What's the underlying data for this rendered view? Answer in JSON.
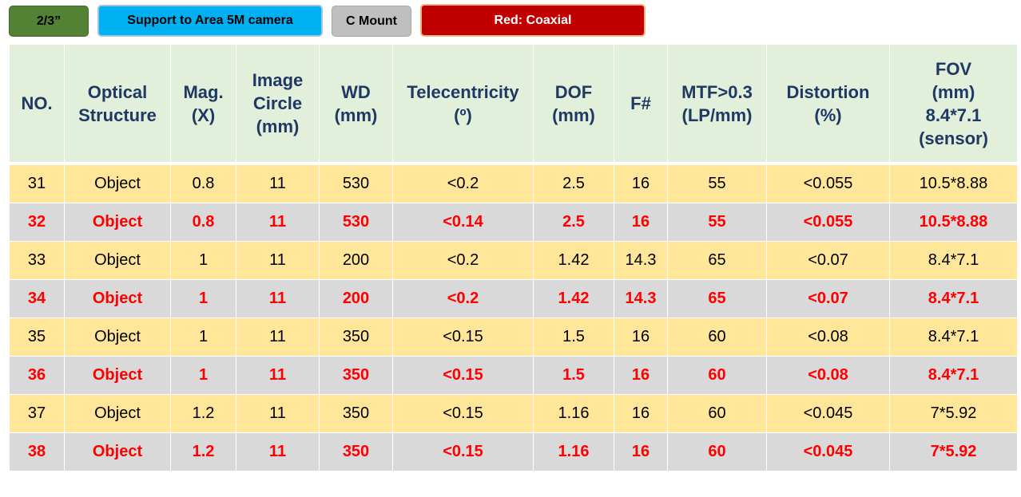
{
  "tags": {
    "sensor_size": "2/3”",
    "support": "Support to Area 5M camera",
    "mount": "C Mount",
    "legend": "Red: Coaxial"
  },
  "colors": {
    "sensor_tag": "#548235",
    "support_tag": "#00b0f0",
    "mount_tag": "#bfbfbf",
    "coaxial_tag": "#c00000",
    "header_bg": "#e2efda",
    "header_text": "#1f3864",
    "standard_row_bg": "#ffe699",
    "coaxial_row_bg": "#d9d9d9",
    "coaxial_text": "#ff0000"
  },
  "table": {
    "headers": [
      [
        "NO."
      ],
      [
        "Optical",
        "Structure"
      ],
      [
        "Mag.",
        "(X)"
      ],
      [
        "Image",
        "Circle",
        "(mm)"
      ],
      [
        "WD",
        "(mm)"
      ],
      [
        "Telecentricity",
        "(º)"
      ],
      [
        "DOF",
        "(mm)"
      ],
      [
        "F#"
      ],
      [
        "MTF>0.3",
        "(LP/mm)"
      ],
      [
        "Distortion",
        "(%)"
      ],
      [
        "FOV",
        "(mm)",
        "8.4*7.1",
        "(sensor)"
      ]
    ],
    "rows": [
      {
        "coaxial": false,
        "cells": [
          "31",
          "Object",
          "0.8",
          "11",
          "530",
          "<0.2",
          "2.5",
          "16",
          "55",
          "<0.055",
          "10.5*8.88"
        ]
      },
      {
        "coaxial": true,
        "cells": [
          "32",
          "Object",
          "0.8",
          "11",
          "530",
          "<0.14",
          "2.5",
          "16",
          "55",
          "<0.055",
          "10.5*8.88"
        ]
      },
      {
        "coaxial": false,
        "cells": [
          "33",
          "Object",
          "1",
          "11",
          "200",
          "<0.2",
          "1.42",
          "14.3",
          "65",
          "<0.07",
          "8.4*7.1"
        ]
      },
      {
        "coaxial": true,
        "cells": [
          "34",
          "Object",
          "1",
          "11",
          "200",
          "<0.2",
          "1.42",
          "14.3",
          "65",
          "<0.07",
          "8.4*7.1"
        ]
      },
      {
        "coaxial": false,
        "cells": [
          "35",
          "Object",
          "1",
          "11",
          "350",
          "<0.15",
          "1.5",
          "16",
          "60",
          "<0.08",
          "8.4*7.1"
        ]
      },
      {
        "coaxial": true,
        "cells": [
          "36",
          "Object",
          "1",
          "11",
          "350",
          "<0.15",
          "1.5",
          "16",
          "60",
          "<0.08",
          "8.4*7.1"
        ]
      },
      {
        "coaxial": false,
        "cells": [
          "37",
          "Object",
          "1.2",
          "11",
          "350",
          "<0.15",
          "1.16",
          "16",
          "60",
          "<0.045",
          "7*5.92"
        ]
      },
      {
        "coaxial": true,
        "cells": [
          "38",
          "Object",
          "1.2",
          "11",
          "350",
          "<0.15",
          "1.16",
          "16",
          "60",
          "<0.045",
          "7*5.92"
        ]
      }
    ]
  }
}
